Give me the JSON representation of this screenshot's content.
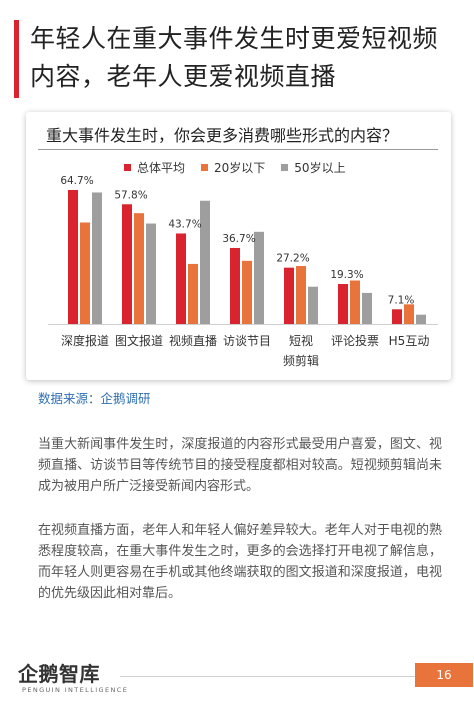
{
  "page": {
    "title": "年轻人在重大事件发生时更爱短视频内容，老年人更爱视频直播",
    "source": "数据来源：企鹅调研",
    "paragraphs": [
      "当重大新闻事件发生时，深度报道的内容形式最受用户喜爱，图文、视频直播、访谈节目等传统节目的接受程度都相对较高。短视频剪辑尚未成为被用户所广泛接受新闻内容形式。",
      "在视频直播方面，老年人和年轻人偏好差异较大。老年人对于电视的熟悉程度较高，在重大事件发生之时，更多的会选择打开电视了解信息，而年轻人则更容易在手机或其他终端获取的图文报道和深度报道，电视的优先级因此相对靠后。"
    ],
    "logo_text": "企鹅智库",
    "logo_subtext": "PENGUIN INTELLIGENCE",
    "page_number": "16"
  },
  "colors": {
    "accent": "#d9232e",
    "series_total": "#d9232e",
    "series_young": "#e8743b",
    "series_old": "#9e9e9e",
    "source_link": "#2f6fb3",
    "page_badge": "#e8743b"
  },
  "chart_data": {
    "type": "bar",
    "title": "重大事件发生时，你会更多消费哪些形式的内容？",
    "categories": [
      "深度报道",
      "图文报道",
      "视频直播",
      "访谈节目",
      "短视频剪辑",
      "评论投票",
      "H5互动"
    ],
    "series": [
      {
        "name": "总体平均",
        "values": [
          64.7,
          57.8,
          43.7,
          36.7,
          27.2,
          19.3,
          7.1
        ],
        "color": "#d9232e"
      },
      {
        "name": "20岁以下",
        "values": [
          49.0,
          53.5,
          29.0,
          30.5,
          28.0,
          21.0,
          9.5
        ],
        "color": "#e8743b"
      },
      {
        "name": "50岁以上",
        "values": [
          63.5,
          48.5,
          59.5,
          44.5,
          18.0,
          15.0,
          4.5
        ],
        "color": "#9e9e9e"
      }
    ],
    "data_labels": [
      "64.7%",
      "57.8%",
      "43.7%",
      "36.7%",
      "27.2%",
      "19.3%",
      "7.1%"
    ],
    "ylim": [
      0,
      70
    ],
    "grid": false,
    "legend_position": "top"
  }
}
